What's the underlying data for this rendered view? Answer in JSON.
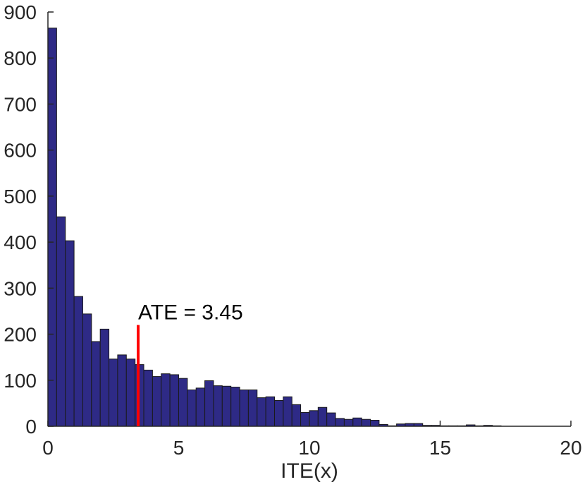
{
  "chart_data": {
    "type": "bar",
    "title": "",
    "xlabel": "ITE(x)",
    "ylabel": "",
    "xlim": [
      0,
      20
    ],
    "ylim": [
      0,
      900
    ],
    "xticks": [
      "0",
      "5",
      "10",
      "15",
      "20"
    ],
    "yticks": [
      "0",
      "100",
      "200",
      "300",
      "400",
      "500",
      "600",
      "700",
      "800",
      "900"
    ],
    "grid": false,
    "legend": "none",
    "bin_width": 0.3333,
    "bin_start": 0,
    "bar_color": "#2e2a86",
    "values": [
      865,
      455,
      403,
      282,
      244,
      184,
      211,
      146,
      155,
      146,
      134,
      122,
      108,
      114,
      112,
      104,
      79,
      83,
      99,
      88,
      87,
      85,
      79,
      79,
      62,
      64,
      56,
      64,
      47,
      30,
      34,
      41,
      29,
      17,
      15,
      18,
      15,
      13,
      4,
      1,
      5,
      6,
      6,
      2,
      2,
      1,
      1,
      1,
      3,
      1,
      2,
      1,
      0,
      0,
      0,
      0,
      0,
      0,
      0,
      0
    ],
    "annotation": {
      "label": "ATE = 3.45",
      "x": 3.45,
      "y_top": 220,
      "color": "#ff0000"
    }
  }
}
